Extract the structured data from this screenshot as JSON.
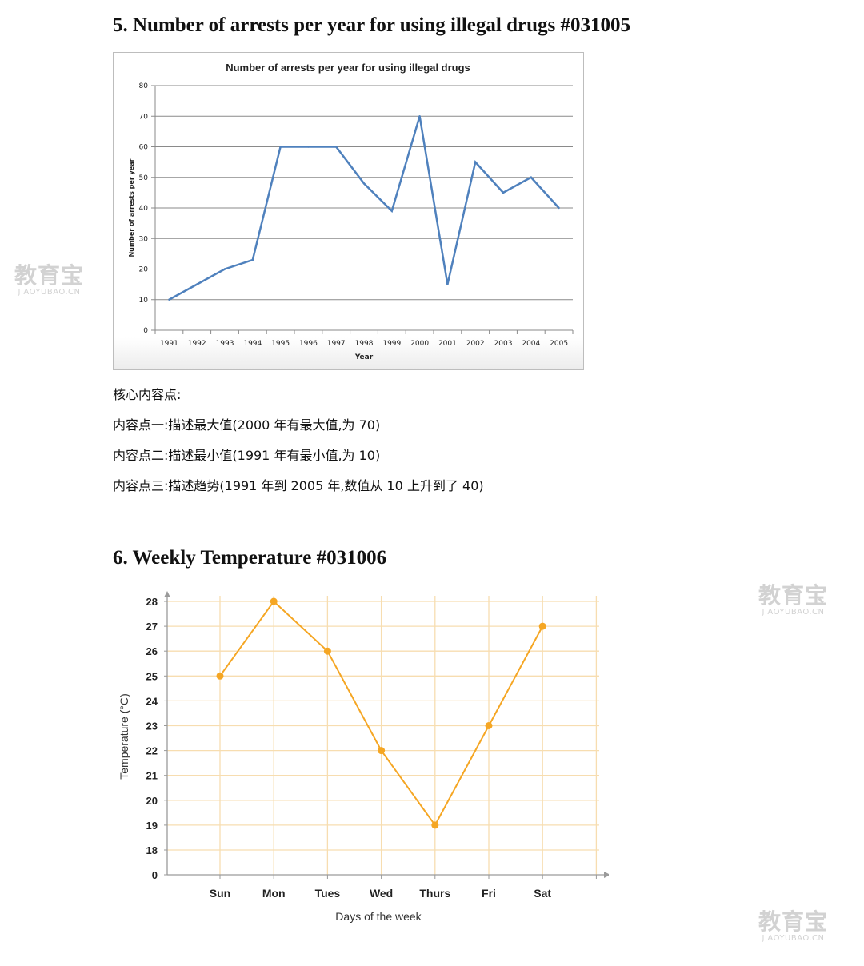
{
  "headings": {
    "h5": "5.  Number of arrests per year for using illegal drugs #031005",
    "h6": "6.  Weekly Temperature #031006"
  },
  "notes": [
    "核心内容点:",
    "内容点一:描述最大值(2000 年有最大值,为 70)",
    "内容点二:描述最小值(1991 年有最小值,为 10)",
    "内容点三:描述趋势(1991 年到 2005 年,数值从 10 上升到了 40)"
  ],
  "watermark": {
    "text": "教育宝",
    "sub": "JIAOYUBAO.CN"
  },
  "chart_data": [
    {
      "type": "line",
      "title": "Number of arrests per year for using illegal drugs",
      "xlabel": "Year",
      "ylabel": "Number of arrests per year",
      "categories": [
        "1991",
        "1992",
        "1993",
        "1994",
        "1995",
        "1996",
        "1997",
        "1998",
        "1999",
        "2000",
        "2001",
        "2002",
        "2003",
        "2004",
        "2005"
      ],
      "series": [
        {
          "values": [
            10,
            15,
            20,
            23,
            60,
            60,
            60,
            48,
            39,
            70,
            15,
            55,
            45,
            50,
            40
          ]
        }
      ],
      "yticks": [
        "0",
        "10",
        "20",
        "30",
        "40",
        "50",
        "60",
        "70",
        "80"
      ],
      "ylim": [
        0,
        80
      ],
      "grid": true,
      "color": "#4f81bd"
    },
    {
      "type": "line",
      "title": "",
      "xlabel": "Days of the week",
      "ylabel": "Temperature (°C)",
      "categories": [
        "Sun",
        "Mon",
        "Tues",
        "Wed",
        "Thurs",
        "Fri",
        "Sat"
      ],
      "series": [
        {
          "values": [
            25,
            28,
            26,
            22,
            19,
            23,
            27
          ]
        }
      ],
      "yticks": [
        "0",
        "18",
        "19",
        "20",
        "21",
        "22",
        "23",
        "24",
        "25",
        "26",
        "27",
        "28"
      ],
      "ylim": [
        18,
        28
      ],
      "axis_break": true,
      "grid": true,
      "color": "#f5a623",
      "grid_color": "#f7ddb0"
    }
  ]
}
